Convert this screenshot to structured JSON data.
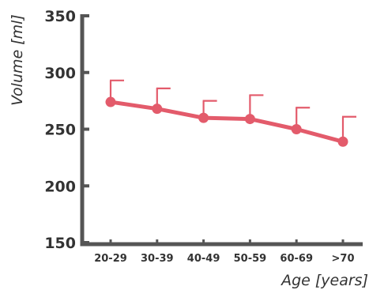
{
  "chart_data": {
    "type": "line",
    "title": "",
    "xlabel": "Age [years]",
    "ylabel": "Volume [ml]",
    "categories": [
      "20-29",
      "30-39",
      "40-49",
      "50-59",
      "60-69",
      ">70"
    ],
    "series": [
      {
        "values": [
          274,
          268,
          260,
          259,
          250,
          239
        ],
        "error_upper": [
          293,
          286,
          275,
          280,
          269,
          261
        ]
      }
    ],
    "ylim": [
      150,
      350
    ],
    "yticks": [
      "350",
      "300",
      "250",
      "200",
      "150"
    ],
    "grid": false,
    "legend": "none",
    "colors": {
      "series": "#e35b6b",
      "axis": "#555555",
      "text": "#333333"
    }
  }
}
